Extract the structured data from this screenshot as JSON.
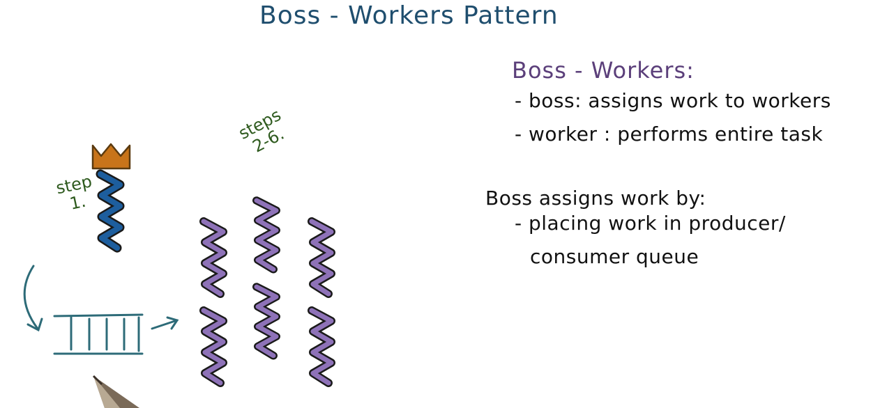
{
  "title": "Boss - Workers Pattern",
  "notes": {
    "heading": "Boss - Workers:",
    "bullet_boss": "- boss: assigns work to workers",
    "bullet_worker": "- worker : performs entire task",
    "assigns_heading": "Boss assigns work by:",
    "placing_line1": "- placing work in producer/",
    "placing_line2": "consumer queue"
  },
  "diagram": {
    "boss_label_line1": "step",
    "boss_label_line2": "1.",
    "workers_label_line1": "steps",
    "workers_label_line2": "2-6.",
    "worker_count": 6
  },
  "colors": {
    "title": "#1f4e6e",
    "heading": "#5b3f7a",
    "boss_thread": "#1d5e9e",
    "crown": "#c8741a",
    "worker_thread": "#8e72b8",
    "queue": "#2d6b78",
    "step_labels": "#2e5a1e"
  },
  "icons": {
    "boss": "crown-icon",
    "boss_thread": "squiggle-thread-icon",
    "queue": "queue-icon",
    "arrows": "arrow-icon",
    "pen": "pen-tip-icon"
  }
}
